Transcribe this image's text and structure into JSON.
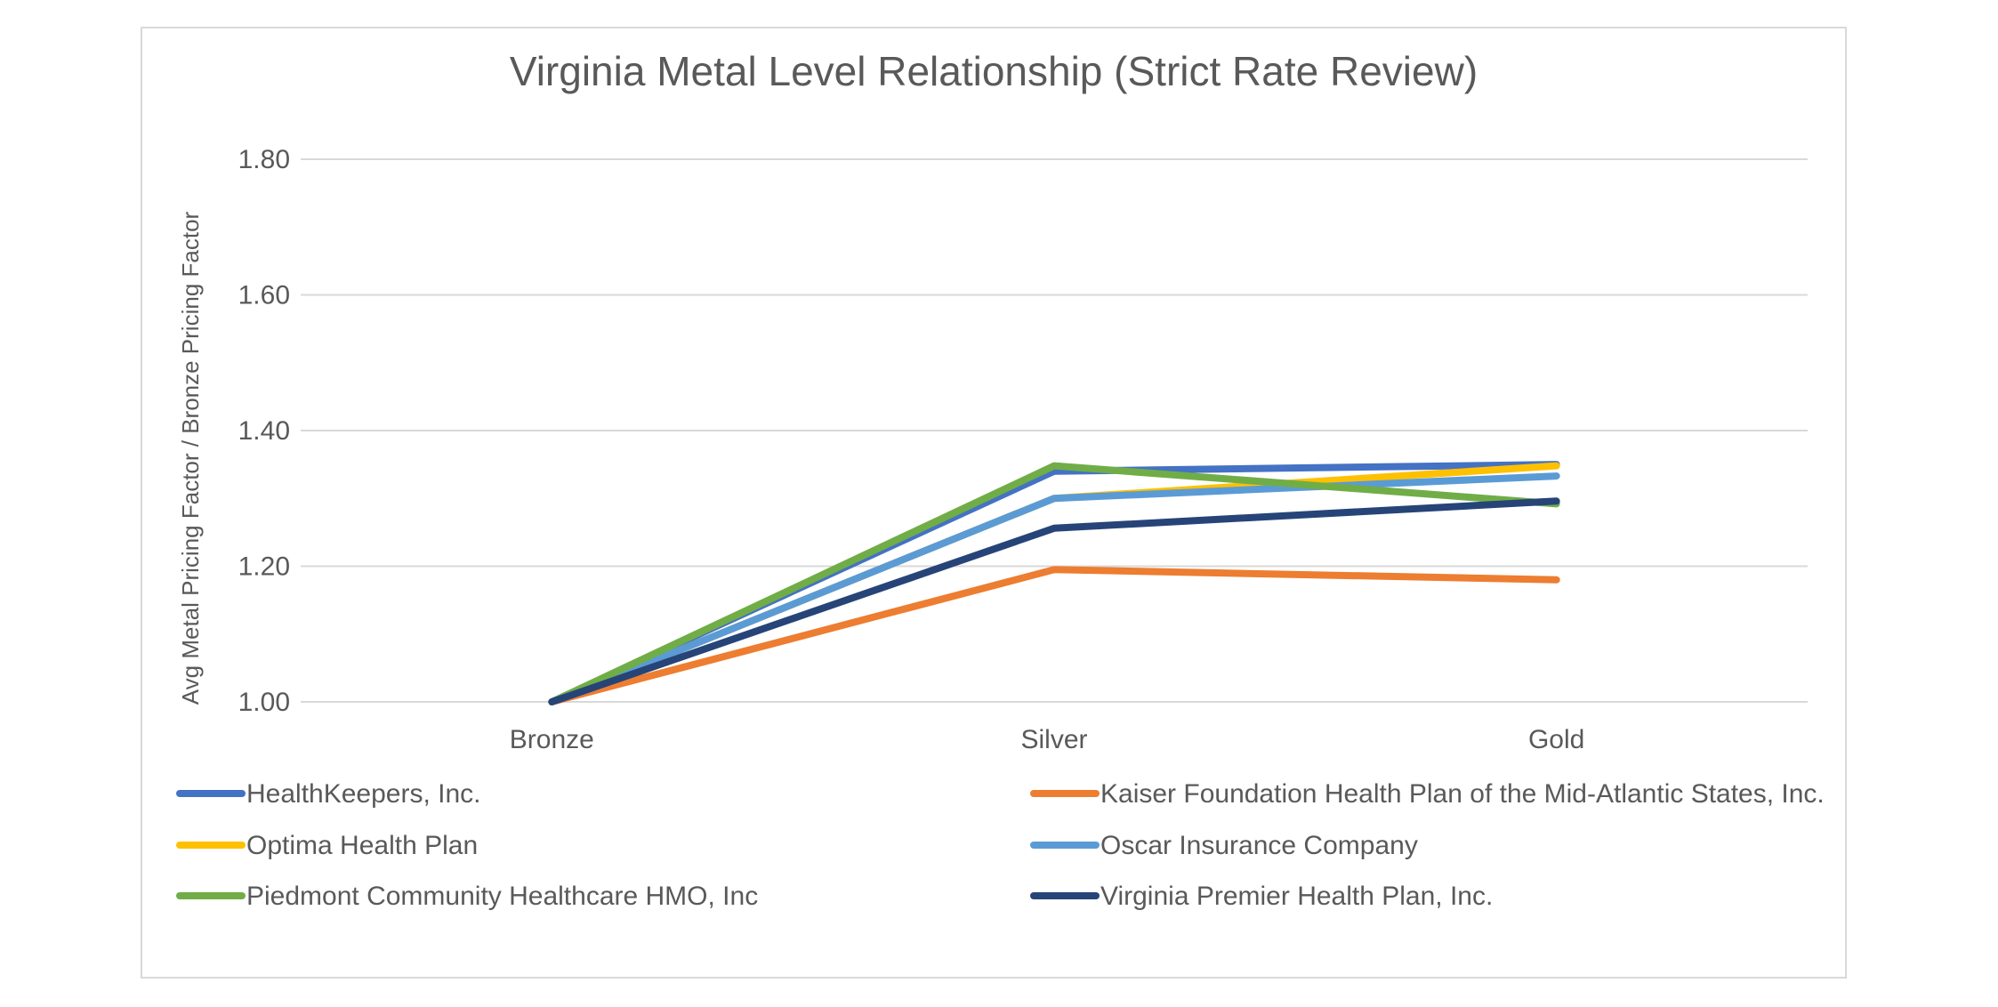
{
  "chart_data": {
    "type": "line",
    "title": "Virginia Metal Level Relationship (Strict Rate Review)",
    "xlabel": "",
    "ylabel": "Avg Metal Pricing Factor / Bronze Pricing Factor",
    "categories": [
      "Bronze",
      "Silver",
      "Gold"
    ],
    "ylim": [
      1.0,
      1.8
    ],
    "yticks": [
      "1.00",
      "1.20",
      "1.40",
      "1.60",
      "1.80"
    ],
    "grid": true,
    "legend_position": "bottom",
    "series": [
      {
        "name": "HealthKeepers, Inc.",
        "color": "#4472c4",
        "values": [
          1.0,
          1.34,
          1.35
        ]
      },
      {
        "name": "Kaiser Foundation Health Plan of the Mid-Atlantic States, Inc.",
        "color": "#ed7d31",
        "values": [
          1.0,
          1.195,
          1.18
        ]
      },
      {
        "name": "Optima Health Plan",
        "color": "#ffc000",
        "values": [
          1.0,
          1.3,
          1.348
        ]
      },
      {
        "name": "Oscar Insurance Company",
        "color": "#5b9bd5",
        "values": [
          1.0,
          1.3,
          1.333
        ]
      },
      {
        "name": "Piedmont Community Healthcare HMO, Inc",
        "color": "#70ad47",
        "values": [
          1.0,
          1.348,
          1.292
        ]
      },
      {
        "name": "Virginia Premier Health Plan, Inc.",
        "color": "#264478",
        "values": [
          1.0,
          1.256,
          1.296
        ]
      }
    ]
  }
}
